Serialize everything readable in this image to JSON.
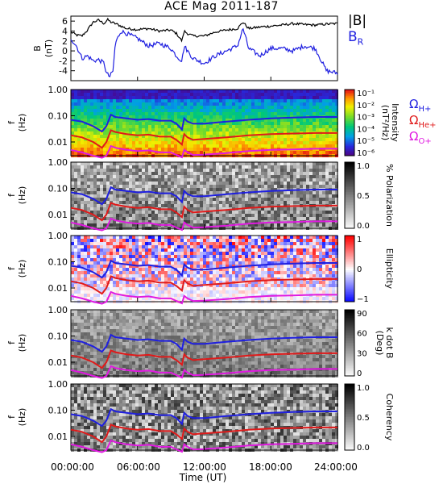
{
  "title": "ACE Mag 2011-187",
  "legend": {
    "b_mag": {
      "label": "|B|",
      "color": "#000000"
    },
    "b_r": {
      "label": "B",
      "sub": "R",
      "color": "#1f1fe0"
    }
  },
  "gyro_labels": [
    {
      "sym": "Ω",
      "sub": "H+",
      "color": "#1f1fe0"
    },
    {
      "sym": "Ω",
      "sub": "He+",
      "color": "#e01a1a"
    },
    {
      "sym": "Ω",
      "sub": "O+",
      "color": "#e01ae0"
    }
  ],
  "x_axis": {
    "title": "Time (UT)",
    "ticks": [
      "00:00:00",
      "06:00:00",
      "12:00:00",
      "18:00:00",
      "24:00:00"
    ],
    "range_hours": [
      0,
      24
    ]
  },
  "chart_data": [
    {
      "type": "line",
      "panel": "B",
      "ylabel": "B",
      "yunit": "(nT)",
      "ylim": [
        -6,
        7
      ],
      "yticks": [
        "6",
        "4",
        "2",
        "0",
        "-2",
        "-4"
      ],
      "series": [
        {
          "name": "|B|",
          "color": "#000000",
          "x": [
            0,
            0.5,
            1,
            1.5,
            2,
            2.5,
            3,
            3.3,
            3.6,
            4,
            5,
            6,
            7,
            8,
            9,
            9.5,
            10,
            10.2,
            10.5,
            11,
            12,
            13,
            14,
            15,
            15.5,
            16,
            17,
            18,
            19,
            20,
            21,
            22,
            23,
            24
          ],
          "y": [
            3.8,
            3.2,
            3.0,
            4.2,
            5.8,
            6.2,
            5.5,
            6.3,
            5.8,
            5.5,
            4.5,
            4.3,
            4.5,
            4.0,
            4.2,
            3.5,
            2.0,
            4.0,
            3.5,
            3.0,
            3.0,
            3.8,
            4.2,
            4.5,
            5.8,
            4.5,
            4.8,
            5.0,
            5.2,
            5.5,
            5.3,
            5.2,
            5.4,
            5.5
          ]
        },
        {
          "name": "B_R",
          "color": "#1f1fe0",
          "x": [
            0,
            0.5,
            1,
            1.5,
            2,
            2.5,
            3,
            3.2,
            3.5,
            3.8,
            4,
            4.5,
            5,
            6,
            7,
            8,
            9,
            9.5,
            10,
            10.2,
            10.5,
            11,
            12,
            13,
            14,
            15,
            15.5,
            16,
            17,
            18,
            19,
            20,
            21,
            22,
            23,
            24
          ],
          "y": [
            2.5,
            1.0,
            -1.5,
            -1.0,
            -2.0,
            -1.8,
            -2.5,
            -4.5,
            -5.2,
            -4.0,
            1.5,
            4.0,
            3.5,
            2.5,
            1.0,
            1.5,
            0.5,
            -1.0,
            -2.0,
            1.0,
            0.0,
            -1.5,
            -2.5,
            -1.0,
            0.0,
            1.0,
            4.5,
            0.5,
            -1.0,
            0.5,
            0.5,
            0.0,
            1.0,
            0.5,
            -4.0,
            -4.5
          ]
        }
      ]
    },
    {
      "type": "heatmap",
      "panel": "Intensity",
      "ylabel": "f",
      "yunit": "(Hz)",
      "yscale": "log",
      "ylim": [
        0.003,
        1.0
      ],
      "yticks": [
        "1.00",
        "0.10",
        "0.01"
      ],
      "colorbar": {
        "label": "Intensity",
        "unit": "(nT²/Hz)",
        "ticks": [
          "10⁻¹",
          "10⁻²",
          "10⁻³",
          "10⁻⁴",
          "10⁻⁵",
          "10⁻⁶"
        ],
        "colormap": "rainbow"
      }
    },
    {
      "type": "heatmap",
      "panel": "Polarization",
      "ylabel": "f",
      "yunit": "(Hz)",
      "yscale": "log",
      "ylim": [
        0.003,
        1.0
      ],
      "yticks": [
        "1.00",
        "0.10",
        "0.01"
      ],
      "colorbar": {
        "label": "% Polarization",
        "ticks": [
          "1.0",
          "0.5",
          "0.0"
        ],
        "colormap": "gray"
      }
    },
    {
      "type": "heatmap",
      "panel": "Ellipticity",
      "ylabel": "f",
      "yunit": "(Hz)",
      "yscale": "log",
      "ylim": [
        0.003,
        1.0
      ],
      "yticks": [
        "1.00",
        "0.10",
        "0.01"
      ],
      "colorbar": {
        "label": "Ellipticity",
        "ticks": [
          "1",
          "0",
          "−1"
        ],
        "colormap": "bwr"
      }
    },
    {
      "type": "heatmap",
      "panel": "k dot B",
      "ylabel": "f",
      "yunit": "(Hz)",
      "yscale": "log",
      "ylim": [
        0.003,
        1.0
      ],
      "yticks": [
        "1.00",
        "0.10",
        "0.01"
      ],
      "colorbar": {
        "label": "k dot B",
        "unit": "(Deg)",
        "ticks": [
          "90",
          "60",
          "30",
          "0"
        ],
        "colormap": "gray"
      }
    },
    {
      "type": "heatmap",
      "panel": "Coherency",
      "ylabel": "f",
      "yunit": "(Hz)",
      "yscale": "log",
      "ylim": [
        0.003,
        1.0
      ],
      "yticks": [
        "1.00",
        "0.10",
        "0.01"
      ],
      "colorbar": {
        "label": "Coherency",
        "ticks": [
          "1.0",
          "0.5",
          "0.0"
        ],
        "colormap": "gray"
      }
    }
  ],
  "gyrofrequency_lines": {
    "x": [
      0,
      1,
      2,
      2.8,
      3.2,
      3.6,
      4.0,
      5,
      6,
      7,
      8,
      9,
      9.5,
      10,
      10.2,
      10.5,
      11,
      12,
      14,
      16,
      18,
      20,
      22,
      24
    ],
    "H+": [
      0.07,
      0.06,
      0.04,
      0.025,
      0.04,
      0.11,
      0.09,
      0.08,
      0.07,
      0.075,
      0.065,
      0.065,
      0.05,
      0.03,
      0.08,
      0.06,
      0.05,
      0.05,
      0.06,
      0.07,
      0.08,
      0.085,
      0.09,
      0.09
    ],
    "He+": [
      0.018,
      0.015,
      0.01,
      0.006,
      0.01,
      0.028,
      0.024,
      0.02,
      0.018,
      0.019,
      0.016,
      0.016,
      0.012,
      0.008,
      0.02,
      0.015,
      0.012,
      0.013,
      0.015,
      0.018,
      0.02,
      0.021,
      0.022,
      0.022
    ],
    "O+": [
      0.005,
      0.004,
      0.003,
      0.0025,
      0.003,
      0.007,
      0.006,
      0.005,
      0.0045,
      0.0048,
      0.004,
      0.004,
      0.0032,
      0.0026,
      0.005,
      0.004,
      0.0032,
      0.0033,
      0.0038,
      0.0045,
      0.005,
      0.0052,
      0.0055,
      0.0055
    ]
  }
}
